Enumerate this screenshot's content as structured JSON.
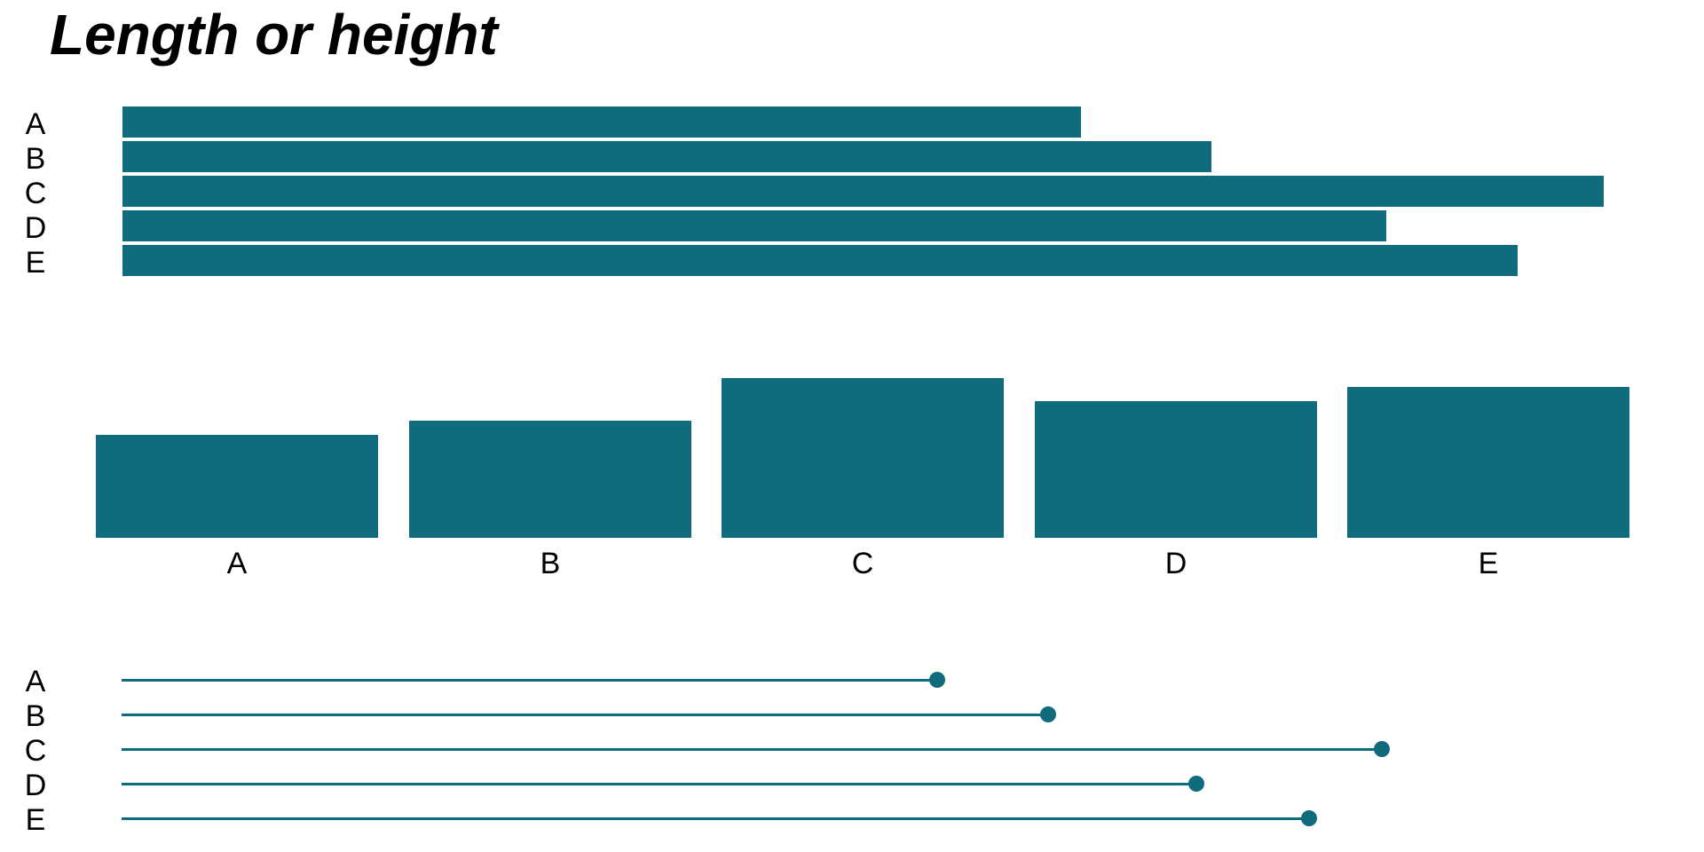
{
  "title": "Length or height",
  "colors": {
    "accent": "#106B7C",
    "text": "#000000",
    "background": "#FFFFFF"
  },
  "chart_data": [
    {
      "id": "horizontal-bar-chart",
      "type": "bar",
      "orientation": "horizontal",
      "categories": [
        "A",
        "B",
        "C",
        "D",
        "E"
      ],
      "values": [
        64.7,
        73.5,
        100,
        85.3,
        94.2
      ],
      "value_note": "relative scale, C = 100; no axes, gridlines or data labels shown",
      "title": "",
      "xlabel": "",
      "ylabel": "",
      "grid": false,
      "legend": false
    },
    {
      "id": "vertical-bar-chart",
      "type": "bar",
      "orientation": "vertical",
      "categories": [
        "A",
        "B",
        "C",
        "D",
        "E"
      ],
      "values": [
        64.7,
        73.5,
        100,
        85.3,
        94.2
      ],
      "value_note": "same data as first chart, relative scale C = 100",
      "title": "",
      "xlabel": "",
      "ylabel": "",
      "grid": false,
      "legend": false
    },
    {
      "id": "lollipop-chart",
      "type": "lollipop",
      "orientation": "horizontal",
      "categories": [
        "A",
        "B",
        "C",
        "D",
        "E"
      ],
      "values": [
        64.7,
        73.5,
        100,
        85.3,
        94.2
      ],
      "value_note": "same data as first chart, relative scale C = 100",
      "title": "",
      "xlabel": "",
      "ylabel": "",
      "grid": false,
      "legend": false
    }
  ]
}
